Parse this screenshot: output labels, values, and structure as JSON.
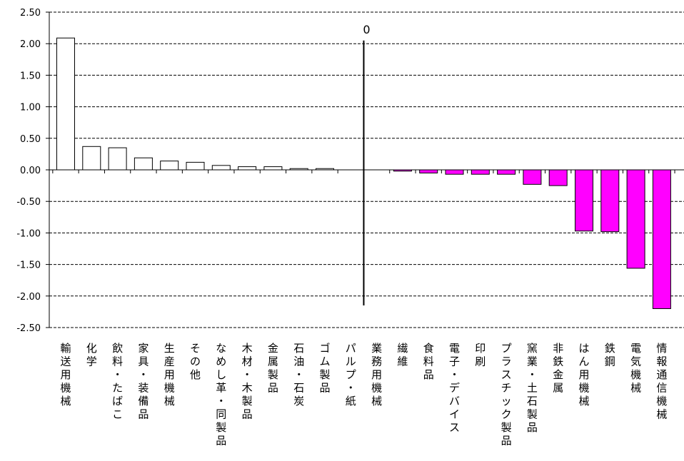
{
  "chart_data": {
    "type": "bar",
    "title": "",
    "xlabel": "",
    "ylabel": "",
    "ylim": [
      -2.5,
      2.5
    ],
    "yticks": [
      "2.50",
      "2.00",
      "1.50",
      "1.00",
      "0.50",
      "0.00",
      "-0.50",
      "-1.00",
      "-1.50",
      "-2.00",
      "-2.50"
    ],
    "grid": true,
    "legend": "none",
    "zero_marker_label": "0",
    "zero_marker_after_category": "パルプ・紙",
    "colors": {
      "positive": "#ffffff",
      "negative": "#ff00ff",
      "edge": "#000000"
    },
    "categories": [
      "輸送用機械",
      "化学",
      "飲料・たばこ",
      "家具・装備品",
      "生産用機械",
      "その他",
      "なめし革・同製品",
      "木材・木製品",
      "金属製品",
      "石油・石炭",
      "ゴム製品",
      "パルプ・紙",
      "業務用機械",
      "繊維",
      "食料品",
      "電子・デバイス",
      "印刷",
      "プラスチック製品",
      "窯業・土石製品",
      "非鉄金属",
      "はん用機械",
      "鉄鋼",
      "電気機械",
      "情報通信機械"
    ],
    "values": [
      2.09,
      0.37,
      0.35,
      0.19,
      0.14,
      0.12,
      0.07,
      0.05,
      0.05,
      0.02,
      0.02,
      0.0,
      0.0,
      -0.02,
      -0.05,
      -0.07,
      -0.07,
      -0.07,
      -0.23,
      -0.25,
      -0.97,
      -0.98,
      -1.56,
      -2.2
    ]
  }
}
